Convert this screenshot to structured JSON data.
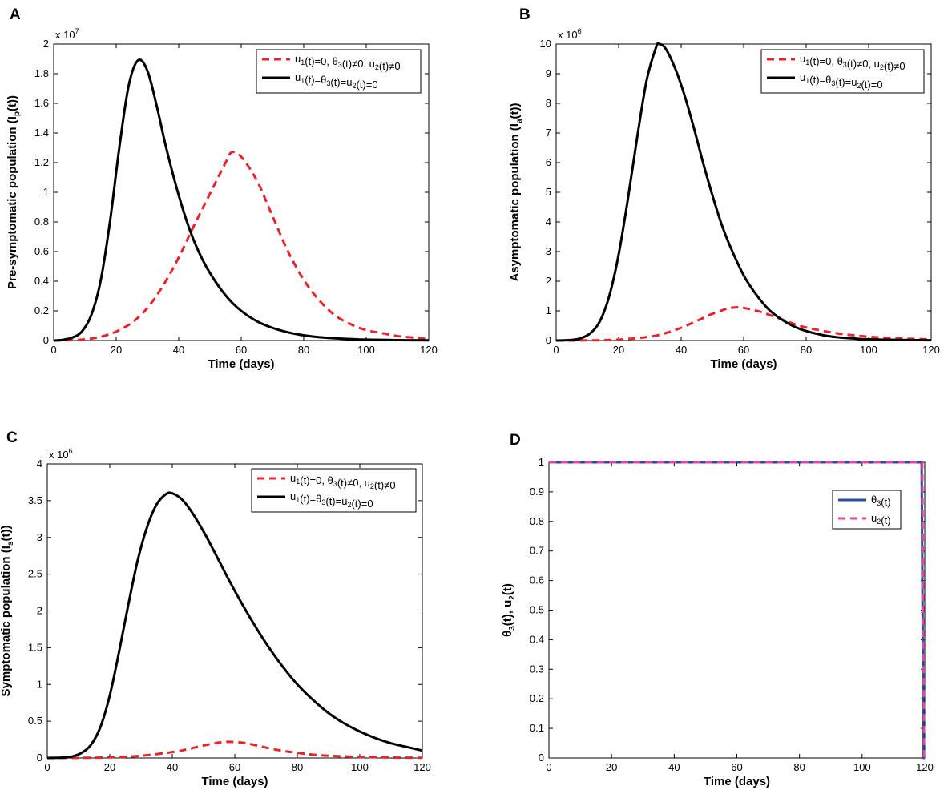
{
  "chart_data": [
    {
      "type": "line",
      "panel": "A",
      "xlabel": "Time (days)",
      "ylabel": "Pre-symptomatic population (I",
      "ylabel_sub": "p",
      "ylabel_tail": "(t))",
      "multiplier": "x 10",
      "multiplier_exp": "7",
      "xlim": [
        0,
        120
      ],
      "ylim": [
        0,
        2
      ],
      "xticks": [
        "0",
        "20",
        "40",
        "60",
        "80",
        "100",
        "120"
      ],
      "yticks": [
        "0",
        "0.2",
        "0.4",
        "0.6",
        "0.8",
        "1",
        "1.2",
        "1.4",
        "1.6",
        "1.8",
        "2"
      ],
      "series": [
        {
          "name": "controlled",
          "style": "dashed",
          "color": "#e8242b",
          "legend_label": "u1(t)=0, θ3(t)≠0, u2(t)≠0",
          "x": [
            0,
            5,
            10,
            15,
            20,
            25,
            30,
            35,
            40,
            45,
            50,
            55,
            57,
            60,
            65,
            70,
            75,
            80,
            85,
            90,
            95,
            100,
            105,
            110,
            115,
            120
          ],
          "y": [
            0,
            0.002,
            0.008,
            0.025,
            0.06,
            0.12,
            0.22,
            0.37,
            0.56,
            0.78,
            0.99,
            1.2,
            1.27,
            1.24,
            1.08,
            0.84,
            0.6,
            0.41,
            0.27,
            0.17,
            0.11,
            0.07,
            0.05,
            0.03,
            0.02,
            0.01
          ]
        },
        {
          "name": "uncontrolled",
          "style": "solid",
          "color": "#000000",
          "legend_label": "u1(t)=θ3(t)=u2(t)=0",
          "x": [
            0,
            3,
            6,
            9,
            12,
            15,
            18,
            21,
            24,
            27,
            30,
            33,
            36,
            40,
            44,
            48,
            52,
            56,
            60,
            65,
            70,
            75,
            80,
            85,
            90,
            95,
            100,
            110,
            120
          ],
          "y": [
            0,
            0.005,
            0.02,
            0.06,
            0.17,
            0.4,
            0.8,
            1.3,
            1.72,
            1.89,
            1.82,
            1.58,
            1.3,
            0.98,
            0.72,
            0.53,
            0.39,
            0.28,
            0.2,
            0.13,
            0.085,
            0.055,
            0.035,
            0.022,
            0.015,
            0.01,
            0.006,
            0.003,
            0.001
          ]
        }
      ]
    },
    {
      "type": "line",
      "panel": "B",
      "xlabel": "Time (days)",
      "ylabel": "Asymptomatic population (I",
      "ylabel_sub": "a",
      "ylabel_tail": "(t))",
      "multiplier": "x 10",
      "multiplier_exp": "6",
      "xlim": [
        0,
        120
      ],
      "ylim": [
        0,
        10
      ],
      "xticks": [
        "0",
        "20",
        "40",
        "60",
        "80",
        "100",
        "120"
      ],
      "yticks": [
        "0",
        "1",
        "2",
        "3",
        "4",
        "5",
        "6",
        "7",
        "8",
        "9",
        "10"
      ],
      "series": [
        {
          "name": "controlled",
          "style": "dashed",
          "color": "#e8242b",
          "legend_label": "u1(t)=0, θ3(t)≠0, u2(t)≠0",
          "x": [
            0,
            10,
            20,
            30,
            35,
            40,
            45,
            50,
            55,
            58,
            60,
            65,
            70,
            75,
            80,
            90,
            100,
            110,
            120
          ],
          "y": [
            0,
            0.005,
            0.03,
            0.13,
            0.25,
            0.43,
            0.66,
            0.9,
            1.08,
            1.12,
            1.1,
            0.98,
            0.8,
            0.6,
            0.44,
            0.24,
            0.13,
            0.07,
            0.04
          ]
        },
        {
          "name": "uncontrolled",
          "style": "solid",
          "color": "#000000",
          "legend_label": "u1(t)=θ3(t)=u2(t)=0",
          "x": [
            0,
            5,
            8,
            11,
            14,
            17,
            20,
            23,
            26,
            29,
            32,
            33,
            35,
            38,
            41,
            44,
            47,
            50,
            53,
            56,
            60,
            64,
            68,
            72,
            76,
            80,
            85,
            90,
            95,
            100,
            110,
            120
          ],
          "y": [
            0,
            0.02,
            0.08,
            0.25,
            0.65,
            1.5,
            2.9,
            4.8,
            6.9,
            8.8,
            9.9,
            10,
            9.85,
            9.2,
            8.3,
            7.2,
            6.0,
            4.9,
            3.9,
            3.1,
            2.2,
            1.55,
            1.05,
            0.72,
            0.48,
            0.32,
            0.19,
            0.11,
            0.07,
            0.04,
            0.02,
            0.01
          ]
        }
      ]
    },
    {
      "type": "line",
      "panel": "C",
      "xlabel": "Time (days)",
      "ylabel": "Symptomatic population (I",
      "ylabel_sub": "s",
      "ylabel_tail": "(t))",
      "multiplier": "x 10",
      "multiplier_exp": "6",
      "xlim": [
        0,
        120
      ],
      "ylim": [
        0,
        4
      ],
      "xticks": [
        "0",
        "20",
        "40",
        "60",
        "80",
        "100",
        "120"
      ],
      "yticks": [
        "0",
        "0.5",
        "1",
        "1.5",
        "2",
        "2.5",
        "3",
        "3.5",
        "4"
      ],
      "series": [
        {
          "name": "controlled",
          "style": "dashed",
          "color": "#e8242b",
          "legend_label": "u1(t)=0, θ3(t)≠0, u2(t)≠0",
          "x": [
            0,
            10,
            20,
            30,
            40,
            45,
            50,
            55,
            58,
            62,
            66,
            70,
            75,
            80,
            85,
            90,
            100,
            110,
            120
          ],
          "y": [
            0,
            0.002,
            0.008,
            0.03,
            0.08,
            0.12,
            0.17,
            0.21,
            0.22,
            0.21,
            0.18,
            0.14,
            0.1,
            0.07,
            0.045,
            0.03,
            0.014,
            0.006,
            0.003
          ]
        },
        {
          "name": "uncontrolled",
          "style": "solid",
          "color": "#000000",
          "legend_label": "u1(t)=θ3(t)=u2(t)=0",
          "x": [
            0,
            5,
            8,
            11,
            14,
            17,
            20,
            23,
            26,
            29,
            32,
            35,
            38,
            40,
            43,
            46,
            50,
            54,
            58,
            62,
            66,
            70,
            75,
            80,
            85,
            90,
            95,
            100,
            105,
            110,
            115,
            120
          ],
          "y": [
            0,
            0.005,
            0.02,
            0.07,
            0.18,
            0.42,
            0.85,
            1.45,
            2.1,
            2.7,
            3.15,
            3.45,
            3.59,
            3.6,
            3.52,
            3.36,
            3.08,
            2.76,
            2.43,
            2.12,
            1.83,
            1.56,
            1.26,
            1.0,
            0.79,
            0.61,
            0.47,
            0.36,
            0.27,
            0.2,
            0.15,
            0.1
          ]
        }
      ]
    },
    {
      "type": "line",
      "panel": "D",
      "xlabel": "Time (days)",
      "ylabel": "θ",
      "ylabel_sub": "3",
      "ylabel_tail": "(t), u",
      "ylabel_sub2": "2",
      "ylabel_tail2": "(t)",
      "xlim": [
        0,
        120
      ],
      "ylim": [
        0,
        1
      ],
      "xticks": [
        "0",
        "20",
        "40",
        "60",
        "80",
        "100",
        "120"
      ],
      "yticks": [
        "0",
        "0.1",
        "0.2",
        "0.3",
        "0.4",
        "0.5",
        "0.6",
        "0.7",
        "0.8",
        "0.9",
        "1"
      ],
      "series": [
        {
          "name": "theta3",
          "style": "solid",
          "color": "#2a4d9b",
          "legend_label": "θ3(t)",
          "x": [
            0,
            119,
            119.6,
            120
          ],
          "y": [
            1,
            1,
            0,
            0
          ]
        },
        {
          "name": "u2",
          "style": "dashed",
          "color": "#e0489e",
          "legend_label": "u2(t)",
          "x": [
            0,
            119.2,
            119.8,
            120
          ],
          "y": [
            1,
            1,
            0,
            0
          ]
        }
      ]
    }
  ]
}
